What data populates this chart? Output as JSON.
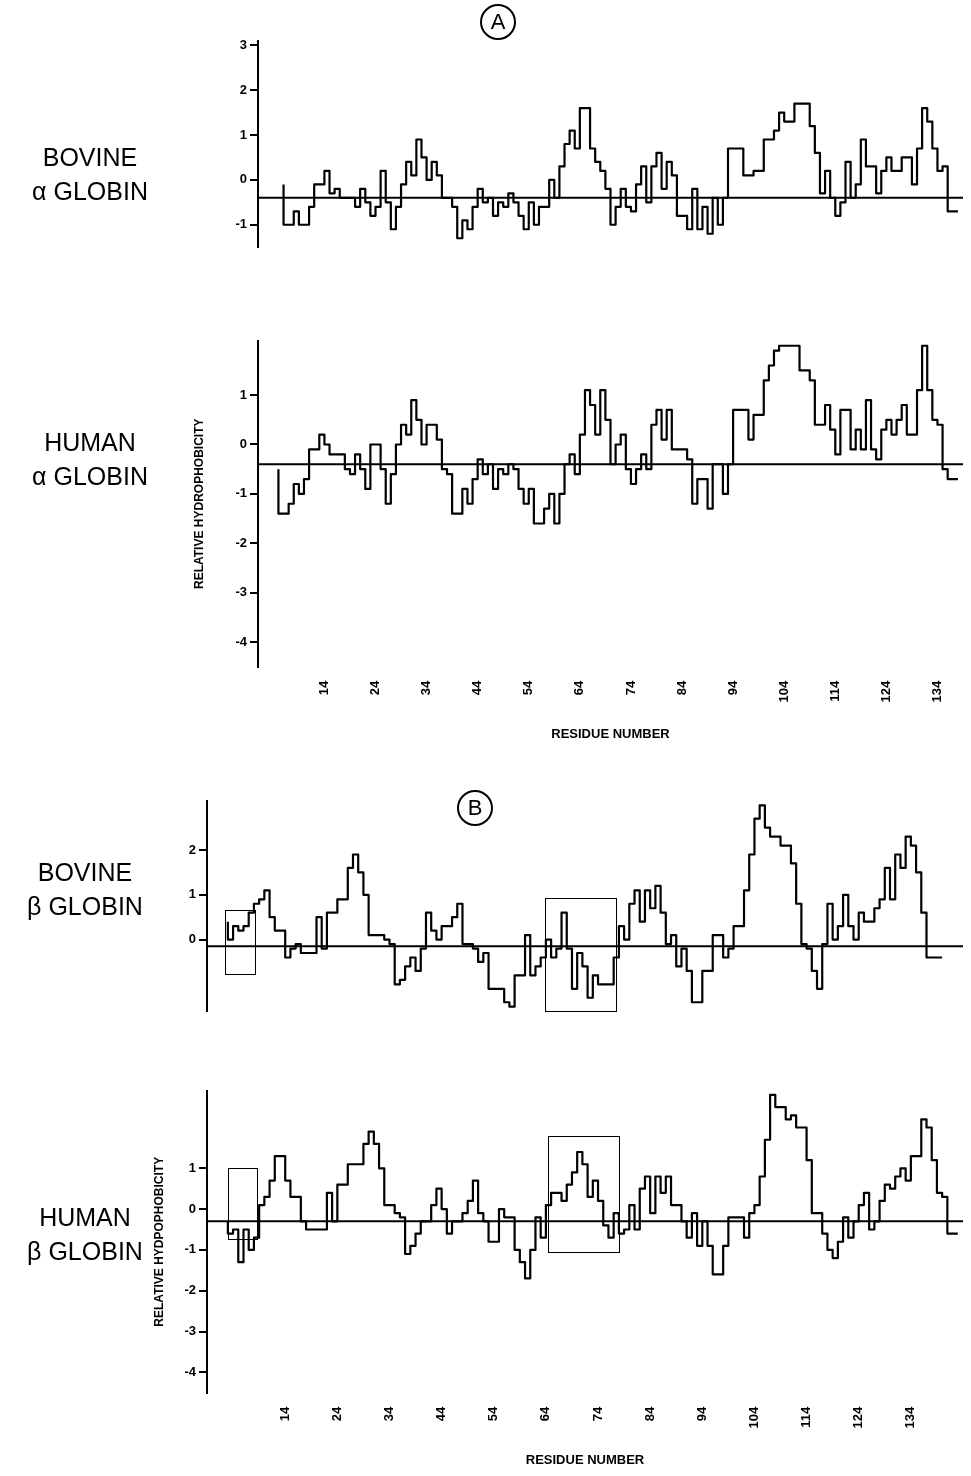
{
  "chart_data": [
    {
      "type": "step",
      "title": "BOVINE α GLOBIN",
      "annotations": [
        "A"
      ],
      "tick_labels": "y",
      "color": "#000000",
      "x": [
        6,
        8,
        9,
        11,
        12,
        14,
        15,
        16,
        17,
        20,
        21,
        22,
        23,
        24,
        25,
        26,
        27,
        28,
        29,
        30,
        31,
        32,
        33,
        34,
        35,
        36,
        37,
        39,
        40,
        41,
        42,
        43,
        44,
        45,
        46,
        47,
        48,
        49,
        50,
        51,
        52,
        53,
        54,
        55,
        56,
        58,
        59,
        60,
        61,
        62,
        63,
        64,
        66,
        67,
        68,
        69,
        70,
        71,
        72,
        73,
        74,
        75,
        76,
        77,
        78,
        79,
        80,
        81,
        82,
        83,
        85,
        86,
        87,
        88,
        89,
        90,
        91,
        92,
        93,
        96,
        98,
        100,
        102,
        103,
        104,
        106,
        109,
        110,
        111,
        112,
        113,
        114,
        115,
        116,
        117,
        118,
        119,
        120,
        122,
        123,
        124,
        125,
        127,
        129,
        130,
        131,
        132,
        133,
        134,
        135,
        136,
        137,
        138
      ],
      "values": [
        -0.1,
        -1.0,
        -0.7,
        -1.0,
        -0.6,
        -0.1,
        0.2,
        -0.3,
        -0.2,
        -0.4,
        -0.6,
        -0.2,
        -0.5,
        -0.8,
        -0.6,
        0.2,
        -0.5,
        -1.1,
        -0.6,
        -0.1,
        0.4,
        0.1,
        0.9,
        0.5,
        0,
        0.4,
        0.1,
        -0.4,
        -0.6,
        -1.3,
        -0.9,
        -1.1,
        -0.6,
        -0.2,
        -0.5,
        -0.4,
        -0.8,
        -0.5,
        -0.6,
        -0.3,
        -0.5,
        -0.8,
        -1.1,
        -0.5,
        -1.0,
        -0.6,
        0,
        -0.4,
        0.3,
        0.8,
        1.1,
        0.7,
        1.6,
        0.7,
        0.4,
        0.2,
        -0.2,
        -1.0,
        -0.6,
        -0.2,
        -0.6,
        -0.7,
        -0.1,
        0.3,
        -0.5,
        0.3,
        0.6,
        -0.2,
        0.4,
        0.1,
        -0.8,
        -1.1,
        -0.2,
        -1.1,
        -0.6,
        -1.2,
        -0.4,
        -1.0,
        -0.4,
        0.7,
        0.1,
        0.2,
        0.9,
        1.1,
        1.5,
        1.3,
        1.7,
        1.2,
        0.6,
        -0.3,
        0.2,
        -0.4,
        -0.8,
        -0.5,
        0.4,
        -0.4,
        -0.1,
        0.9,
        0.3,
        -0.3,
        0.2,
        0.5,
        0.2,
        0.5,
        -0.1,
        0.7,
        1.6,
        1.3,
        0.7,
        0.2,
        0.3,
        -0.7,
        -0.7
      ],
      "xlim": [
        1,
        139
      ],
      "xticks": [
        14,
        24,
        34,
        44,
        54,
        64,
        74,
        84,
        94,
        104,
        114,
        124,
        134
      ],
      "ylim": [
        -1.5,
        3.1
      ],
      "yticks": [
        -1,
        0,
        1,
        2,
        3
      ],
      "ref_lines": [
        {
          "axis": "y",
          "value": -0.4
        }
      ]
    },
    {
      "type": "step",
      "title": "HUMAN α GLOBIN",
      "xlabel": "RESIDUE NUMBER",
      "ylabel": "RELATIVE HYDROPHOBICITY",
      "color": "#000000",
      "x": [
        5,
        7,
        8,
        9,
        10,
        11,
        13,
        14,
        15,
        18,
        19,
        20,
        21,
        22,
        23,
        25,
        26,
        27,
        28,
        29,
        30,
        31,
        32,
        33,
        34,
        36,
        37,
        38,
        39,
        41,
        42,
        43,
        44,
        45,
        46,
        47,
        48,
        49,
        50,
        51,
        52,
        53,
        54,
        55,
        57,
        58,
        59,
        60,
        61,
        62,
        63,
        64,
        65,
        66,
        67,
        68,
        69,
        70,
        71,
        72,
        73,
        74,
        75,
        76,
        77,
        78,
        79,
        80,
        81,
        82,
        85,
        86,
        87,
        89,
        90,
        92,
        93,
        94,
        97,
        98,
        100,
        101,
        102,
        103,
        107,
        109,
        110,
        112,
        113,
        114,
        115,
        117,
        118,
        119,
        120,
        121,
        122,
        123,
        124,
        125,
        126,
        127,
        128,
        130,
        131,
        132,
        133,
        134,
        135,
        136,
        137,
        138
      ],
      "values": [
        -0.5,
        -1.4,
        -1.2,
        -0.8,
        -1.0,
        -0.7,
        -0.1,
        0.2,
        0,
        -0.2,
        -0.5,
        -0.6,
        -0.2,
        -0.5,
        -0.9,
        0,
        -0.5,
        -1.2,
        -0.6,
        0,
        0.4,
        0.2,
        0.9,
        0.5,
        0,
        0.4,
        0.1,
        -0.5,
        -0.6,
        -1.4,
        -0.9,
        -1.2,
        -0.7,
        -0.3,
        -0.6,
        -0.4,
        -0.9,
        -0.5,
        -0.6,
        -0.4,
        -0.5,
        -0.9,
        -1.2,
        -0.9,
        -1.6,
        -1.3,
        -1.0,
        -1.6,
        -1.0,
        -0.4,
        -0.2,
        -0.6,
        0.2,
        1.1,
        0.8,
        0.2,
        1.1,
        0.5,
        -0.4,
        0,
        0.2,
        -0.5,
        -0.8,
        -0.5,
        -0.2,
        -0.5,
        0.4,
        0.7,
        0.1,
        0.7,
        -0.1,
        -0.3,
        -1.2,
        -0.7,
        -1.3,
        -0.4,
        -1.0,
        -0.4,
        0.7,
        0.1,
        0.6,
        1.3,
        1.6,
        1.9,
        2.0,
        1.5,
        1.3,
        0.4,
        0.8,
        0.3,
        -0.2,
        0.7,
        -0.1,
        0.3,
        -0.1,
        0.9,
        -0.1,
        -0.3,
        0.3,
        0.5,
        0.2,
        0.5,
        0.8,
        0.2,
        1.1,
        2.0,
        1.1,
        0.5,
        0.4,
        -0.5,
        -0.7,
        -0.7
      ],
      "xlim": [
        1,
        139
      ],
      "xticks": [
        14,
        24,
        34,
        44,
        54,
        64,
        74,
        84,
        94,
        104,
        114,
        124,
        134
      ],
      "ylim": [
        -4.5,
        2.1
      ],
      "yticks": [
        -4,
        -3,
        -2,
        -1,
        0,
        1
      ],
      "ref_lines": [
        {
          "axis": "y",
          "value": -0.4
        }
      ]
    },
    {
      "type": "step",
      "title": "BOVINE β GLOBIN",
      "annotations": [
        "B"
      ],
      "tick_labels": "y",
      "color": "#000000",
      "x": [
        3,
        4,
        5,
        6,
        7,
        8,
        9,
        10,
        11,
        12,
        14,
        15,
        16,
        17,
        20,
        21,
        22,
        24,
        26,
        27,
        28,
        29,
        30,
        33,
        34,
        35,
        36,
        37,
        38,
        39,
        40,
        41,
        42,
        43,
        44,
        46,
        47,
        48,
        50,
        51,
        52,
        53,
        56,
        57,
        58,
        60,
        61,
        62,
        63,
        64,
        65,
        66,
        67,
        68,
        69,
        70,
        71,
        72,
        73,
        74,
        77,
        78,
        79,
        80,
        81,
        82,
        83,
        84,
        85,
        86,
        87,
        88,
        89,
        90,
        91,
        92,
        94,
        96,
        98,
        99,
        100,
        102,
        103,
        104,
        105,
        106,
        107,
        109,
        111,
        112,
        113,
        114,
        115,
        116,
        117,
        118,
        119,
        120,
        121,
        122,
        123,
        124,
        125,
        127,
        128,
        129,
        130,
        131,
        132,
        133,
        134,
        135,
        136,
        137,
        138,
        140
      ],
      "values": [
        0.4,
        0,
        0.3,
        0.2,
        0.3,
        0.6,
        0.8,
        0.9,
        1.1,
        0.5,
        0.2,
        -0.4,
        -0.2,
        -0.1,
        -0.3,
        0.5,
        -0.2,
        0.6,
        0.9,
        1.6,
        1.9,
        1.5,
        1.0,
        0.1,
        0,
        -0.1,
        -1.0,
        -0.9,
        -0.6,
        -0.4,
        -0.7,
        -0.2,
        0.6,
        0.2,
        0,
        0.3,
        0.5,
        0.8,
        -0.1,
        -0.2,
        -0.5,
        -0.3,
        -1.1,
        -1.4,
        -1.5,
        -0.8,
        0.1,
        -0.8,
        -0.6,
        -0.4,
        0,
        -0.4,
        -0.2,
        0.6,
        -0.2,
        -1.1,
        -0.3,
        -0.6,
        -1.3,
        -0.8,
        -1.0,
        -0.4,
        0.3,
        0,
        0.8,
        1.1,
        0.4,
        1.1,
        0.7,
        1.2,
        0.6,
        -0.1,
        0.1,
        -0.6,
        -0.2,
        -0.7,
        -1.4,
        -0.7,
        0.1,
        -0.4,
        -0.2,
        0.3,
        1.1,
        1.9,
        2.7,
        3.0,
        2.5,
        2.3,
        2.1,
        1.7,
        0.8,
        -0.1,
        -0.2,
        -0.7,
        -1.1,
        -0.1,
        0.8,
        0,
        0.3,
        1.0,
        0.3,
        0,
        0.6,
        0.4,
        0.7,
        0.9,
        1.6,
        0.9,
        1.9,
        1.6,
        2.3,
        2.1,
        1.5,
        0.6,
        -0.4,
        -0.4
      ],
      "xlim": [
        -1,
        144
      ],
      "xticks": [
        14,
        24,
        34,
        44,
        54,
        64,
        74,
        84,
        94,
        104,
        114,
        124,
        134
      ],
      "ylim": [
        -1.6,
        3.1
      ],
      "yticks": [
        0,
        1,
        2
      ],
      "ref_lines": [
        {
          "axis": "y",
          "value": -0.15
        }
      ]
    },
    {
      "type": "step",
      "title": "HUMAN β GLOBIN",
      "xlabel": "RESIDUE NUMBER",
      "ylabel": "RELATIVE HYDPOPHOBICITY",
      "color": "#000000",
      "x": [
        3,
        4,
        5,
        6,
        7,
        8,
        9,
        10,
        11,
        12,
        14,
        15,
        17,
        18,
        22,
        23,
        24,
        26,
        29,
        30,
        31,
        32,
        33,
        35,
        36,
        37,
        38,
        39,
        40,
        42,
        43,
        44,
        45,
        46,
        48,
        49,
        50,
        51,
        52,
        53,
        55,
        56,
        58,
        59,
        60,
        61,
        62,
        63,
        64,
        65,
        67,
        68,
        69,
        70,
        71,
        72,
        73,
        74,
        75,
        76,
        77,
        78,
        79,
        80,
        81,
        82,
        83,
        84,
        85,
        86,
        87,
        88,
        90,
        91,
        92,
        93,
        94,
        95,
        96,
        98,
        99,
        102,
        103,
        104,
        105,
        106,
        107,
        108,
        110,
        111,
        112,
        114,
        115,
        117,
        118,
        119,
        120,
        121,
        122,
        123,
        124,
        125,
        126,
        127,
        128,
        129,
        130,
        131,
        132,
        133,
        134,
        136,
        137,
        138,
        139,
        140,
        141,
        142,
        143
      ],
      "values": [
        -0.3,
        -0.6,
        -0.5,
        -1.3,
        -0.5,
        -1.0,
        -0.7,
        0.1,
        0.3,
        0.7,
        1.3,
        0.7,
        0.3,
        -0.3,
        -0.5,
        0.4,
        -0.3,
        0.6,
        1.1,
        1.6,
        1.9,
        1.6,
        1.0,
        0.1,
        -0.1,
        -0.2,
        -1.1,
        -0.9,
        -0.6,
        -0.3,
        0.1,
        0.5,
        0,
        -0.6,
        -0.3,
        -0.1,
        0.2,
        0.7,
        -0.1,
        -0.3,
        -0.8,
        0,
        -0.2,
        -1.0,
        -1.3,
        -1.7,
        -1.0,
        -0.2,
        -0.7,
        0.1,
        0.4,
        0.2,
        0.6,
        0.9,
        1.4,
        1.1,
        0.3,
        0.7,
        0.2,
        -0.4,
        -0.7,
        -0.1,
        -0.6,
        -0.5,
        0.1,
        -0.5,
        0.5,
        0.8,
        -0.1,
        0.8,
        0.4,
        0.8,
        0.1,
        -0.3,
        -0.7,
        -0.1,
        -0.9,
        -0.3,
        -0.9,
        -1.6,
        -0.9,
        -0.2,
        -0.7,
        -0.1,
        0.1,
        0.8,
        1.7,
        2.8,
        2.5,
        2.2,
        2.3,
        2.0,
        1.2,
        -0.1,
        -0.6,
        -1.0,
        -1.2,
        -0.8,
        -0.2,
        -0.7,
        -0.3,
        0.1,
        0.4,
        -0.5,
        -0.3,
        0.2,
        0.6,
        0.5,
        0.8,
        1.0,
        0.7,
        1.3,
        2.2,
        2.0,
        1.2,
        0.4,
        0.3,
        -0.6,
        -0.6
      ],
      "xlim": [
        -1,
        144
      ],
      "xticks": [
        14,
        24,
        34,
        44,
        54,
        64,
        74,
        84,
        94,
        104,
        114,
        124,
        134
      ],
      "ylim": [
        -4.5,
        2.9
      ],
      "yticks": [
        -4,
        -3,
        -2,
        -1,
        0,
        1
      ],
      "ref_lines": [
        {
          "axis": "y",
          "value": -0.3
        }
      ]
    }
  ]
}
